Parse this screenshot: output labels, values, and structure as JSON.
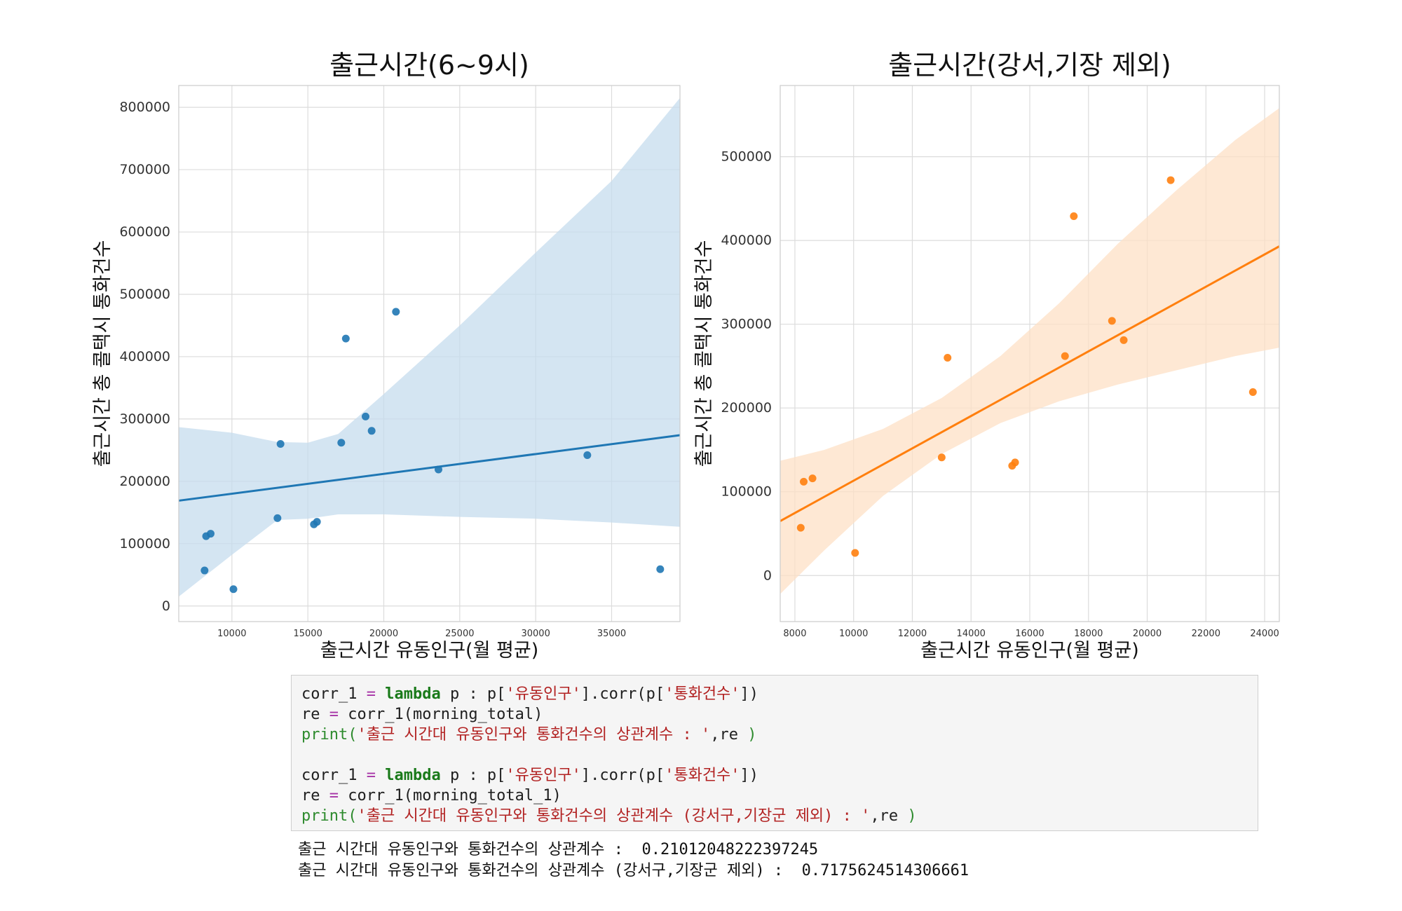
{
  "chart_data": [
    {
      "type": "scatter",
      "title": "출근시간(6~9시)",
      "xlabel": "출근시간 유동인구(월 평균)",
      "ylabel": "출근시간 총 콜택시 통화건수",
      "xlim": [
        6500,
        39500
      ],
      "ylim": [
        -25000,
        835000
      ],
      "xticks": [
        10000,
        15000,
        20000,
        25000,
        30000,
        35000
      ],
      "yticks": [
        0,
        100000,
        200000,
        300000,
        400000,
        500000,
        600000,
        700000,
        800000
      ],
      "color": "#1f77b4",
      "band_color": "#c6dcee",
      "points": [
        {
          "x": 8200,
          "y": 57000
        },
        {
          "x": 8300,
          "y": 112000
        },
        {
          "x": 8600,
          "y": 116000
        },
        {
          "x": 10100,
          "y": 27000
        },
        {
          "x": 13000,
          "y": 141000
        },
        {
          "x": 13200,
          "y": 260000
        },
        {
          "x": 15400,
          "y": 131000
        },
        {
          "x": 15600,
          "y": 135000
        },
        {
          "x": 17200,
          "y": 262000
        },
        {
          "x": 17500,
          "y": 429000
        },
        {
          "x": 18800,
          "y": 304000
        },
        {
          "x": 19200,
          "y": 281000
        },
        {
          "x": 20800,
          "y": 472000
        },
        {
          "x": 23600,
          "y": 219000
        },
        {
          "x": 33400,
          "y": 242000
        },
        {
          "x": 38200,
          "y": 59000
        }
      ],
      "fit_line": [
        {
          "x": 6500,
          "y": 169000
        },
        {
          "x": 39500,
          "y": 274000
        }
      ],
      "ci_upper": [
        {
          "x": 6500,
          "y": 287000
        },
        {
          "x": 10000,
          "y": 278000
        },
        {
          "x": 13000,
          "y": 263000
        },
        {
          "x": 15000,
          "y": 262000
        },
        {
          "x": 17000,
          "y": 276000
        },
        {
          "x": 20000,
          "y": 340000
        },
        {
          "x": 25000,
          "y": 450000
        },
        {
          "x": 30000,
          "y": 567000
        },
        {
          "x": 35000,
          "y": 682000
        },
        {
          "x": 39500,
          "y": 815000
        }
      ],
      "ci_lower": [
        {
          "x": 6500,
          "y": 15000
        },
        {
          "x": 10000,
          "y": 82000
        },
        {
          "x": 13000,
          "y": 138000
        },
        {
          "x": 15000,
          "y": 140000
        },
        {
          "x": 17000,
          "y": 147000
        },
        {
          "x": 20000,
          "y": 147000
        },
        {
          "x": 25000,
          "y": 143000
        },
        {
          "x": 30000,
          "y": 140000
        },
        {
          "x": 35000,
          "y": 134000
        },
        {
          "x": 39500,
          "y": 127000
        }
      ]
    },
    {
      "type": "scatter",
      "title": "출근시간(강서,기장 제외)",
      "xlabel": "출근시간 유동인구(월 평균)",
      "ylabel": "출근시간 총 콜택시 통화건수",
      "xlim": [
        7500,
        24500
      ],
      "ylim": [
        -55000,
        585000
      ],
      "xticks": [
        8000,
        10000,
        12000,
        14000,
        16000,
        18000,
        20000,
        22000,
        24000
      ],
      "yticks": [
        0,
        100000,
        200000,
        300000,
        400000,
        500000
      ],
      "color": "#ff7f0e",
      "band_color": "#fde0c5",
      "points": [
        {
          "x": 8200,
          "y": 57000
        },
        {
          "x": 8300,
          "y": 112000
        },
        {
          "x": 8600,
          "y": 116000
        },
        {
          "x": 10050,
          "y": 27000
        },
        {
          "x": 13000,
          "y": 141000
        },
        {
          "x": 13200,
          "y": 260000
        },
        {
          "x": 15400,
          "y": 131000
        },
        {
          "x": 15500,
          "y": 135000
        },
        {
          "x": 17200,
          "y": 262000
        },
        {
          "x": 17500,
          "y": 429000
        },
        {
          "x": 18800,
          "y": 304000
        },
        {
          "x": 19200,
          "y": 281000
        },
        {
          "x": 20800,
          "y": 472000
        },
        {
          "x": 23600,
          "y": 219000
        }
      ],
      "fit_line": [
        {
          "x": 7500,
          "y": 65000
        },
        {
          "x": 24500,
          "y": 393000
        }
      ],
      "ci_upper": [
        {
          "x": 7500,
          "y": 137000
        },
        {
          "x": 9000,
          "y": 150000
        },
        {
          "x": 11000,
          "y": 175000
        },
        {
          "x": 13000,
          "y": 212000
        },
        {
          "x": 15000,
          "y": 262000
        },
        {
          "x": 17000,
          "y": 325000
        },
        {
          "x": 19000,
          "y": 396000
        },
        {
          "x": 21000,
          "y": 460000
        },
        {
          "x": 23000,
          "y": 520000
        },
        {
          "x": 24500,
          "y": 558000
        }
      ],
      "ci_lower": [
        {
          "x": 7500,
          "y": -22000
        },
        {
          "x": 9000,
          "y": 30000
        },
        {
          "x": 11000,
          "y": 95000
        },
        {
          "x": 13000,
          "y": 145000
        },
        {
          "x": 15000,
          "y": 182000
        },
        {
          "x": 17000,
          "y": 208000
        },
        {
          "x": 19000,
          "y": 228000
        },
        {
          "x": 21000,
          "y": 245000
        },
        {
          "x": 23000,
          "y": 262000
        },
        {
          "x": 24500,
          "y": 272000
        }
      ]
    }
  ],
  "code": {
    "line1": {
      "a": "corr_1 ",
      "op": "=",
      "sp": " ",
      "kw": "lambda",
      "b": " p : p[",
      "s1": "'유동인구'",
      "c": "].corr(p[",
      "s2": "'통화건수'",
      "d": "])"
    },
    "line2": {
      "a": "re ",
      "op": "=",
      "b": " corr_1(morning_total)"
    },
    "line3": {
      "fn": "print",
      "p1": "(",
      "s": "'출근 시간대 유동인구와 통화건수의 상관계수 : '",
      "b": ",re ",
      "p2": ")"
    },
    "line5": {
      "a": "corr_1 ",
      "op": "=",
      "sp": " ",
      "kw": "lambda",
      "b": " p : p[",
      "s1": "'유동인구'",
      "c": "].corr(p[",
      "s2": "'통화건수'",
      "d": "])"
    },
    "line6": {
      "a": "re ",
      "op": "=",
      "b": " corr_1(morning_total_1)"
    },
    "line7": {
      "fn": "print",
      "p1": "(",
      "s": "'출근 시간대 유동인구와 통화건수의 상관계수 (강서구,기장군 제외) : '",
      "b": ",re ",
      "p2": ")"
    }
  },
  "output": {
    "line1": "출근 시간대 유동인구와 통화건수의 상관계수 :  0.21012048222397245",
    "line2": "출근 시간대 유동인구와 통화건수의 상관계수 (강서구,기장군 제외) :  0.7175624514306661"
  }
}
